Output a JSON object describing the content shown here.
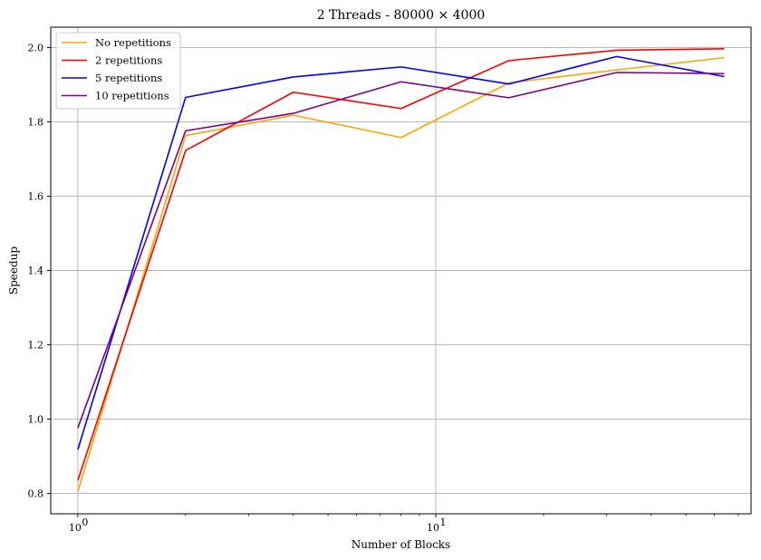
{
  "chart_data": {
    "type": "line",
    "title": "2 Threads - 80000 × 4000",
    "xlabel": "Number of Blocks",
    "ylabel": "Speedup",
    "xscale": "log",
    "x": [
      1,
      2,
      4,
      8,
      16,
      32,
      64
    ],
    "xlim": [
      0.84,
      76
    ],
    "ylim": [
      0.745,
      2.055
    ],
    "yticks": [
      0.8,
      1.0,
      1.2,
      1.4,
      1.6,
      1.8,
      2.0
    ],
    "ytick_labels": [
      "0.8",
      "1.0",
      "1.2",
      "1.4",
      "1.6",
      "1.8",
      "2.0"
    ],
    "xticks_major": [
      1,
      10
    ],
    "xtick_labels": [
      "10",
      "10"
    ],
    "xtick_exponents": [
      "0",
      "1"
    ],
    "grid": true,
    "legend_position": "top-left",
    "series": [
      {
        "name": "No repetitions",
        "color": "#FFA500",
        "values": [
          0.805,
          1.763,
          1.818,
          1.758,
          1.905,
          1.94,
          1.973
        ]
      },
      {
        "name": "2 repetitions",
        "color": "#FF0000",
        "values": [
          0.835,
          1.723,
          1.88,
          1.836,
          1.965,
          1.993,
          1.997
        ]
      },
      {
        "name": "5 repetitions",
        "color": "#0000FF",
        "values": [
          0.918,
          1.866,
          1.921,
          1.948,
          1.902,
          1.976,
          1.922
        ]
      },
      {
        "name": "10 repetitions",
        "color": "#800080",
        "values": [
          0.976,
          1.776,
          1.823,
          1.908,
          1.865,
          1.933,
          1.93
        ]
      }
    ]
  }
}
